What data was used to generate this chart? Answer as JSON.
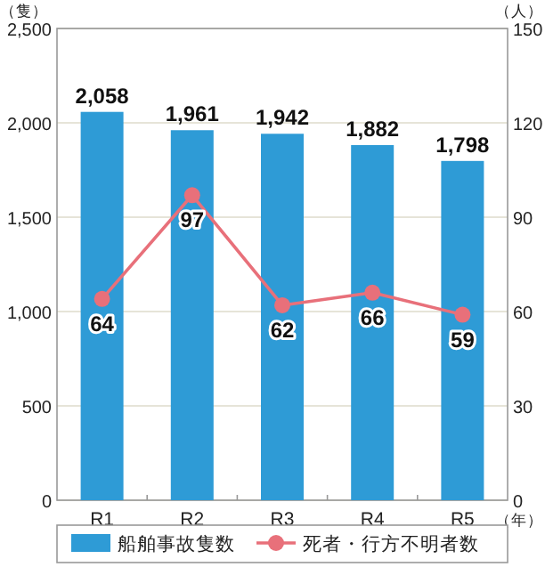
{
  "chart_data": {
    "type": "bar",
    "categories": [
      "R1",
      "R2",
      "R3",
      "R4",
      "R5"
    ],
    "xlabel": "（年）",
    "ylabel": "（隻）",
    "y2label": "（人）",
    "series": [
      {
        "name": "船舶事故隻数",
        "color": "#2e9bd6",
        "values": [
          2058,
          1961,
          1942,
          1882,
          1798
        ],
        "value_labels": [
          "2,058",
          "1,961",
          "1,942",
          "1,882",
          "1,798"
        ]
      },
      {
        "name": "死者・行方不明者数",
        "type": "line",
        "axis": "y2",
        "color": "#e8707a",
        "marker": "circle",
        "values": [
          64,
          97,
          62,
          66,
          59
        ],
        "value_labels": [
          "64",
          "97",
          "62",
          "66",
          "59"
        ]
      }
    ],
    "ylim": [
      0,
      2500
    ],
    "yticks": [
      {
        "value": 0,
        "label": "0"
      },
      {
        "value": 500,
        "label": "500"
      },
      {
        "value": 1000,
        "label": "1,000"
      },
      {
        "value": 1500,
        "label": "1,500"
      },
      {
        "value": 2000,
        "label": "2,000"
      },
      {
        "value": 2500,
        "label": "2,500"
      }
    ],
    "y2lim": [
      0,
      150
    ],
    "y2ticks": [
      0,
      30,
      60,
      90,
      120,
      150
    ],
    "grid": "y",
    "legend": "bottom"
  }
}
